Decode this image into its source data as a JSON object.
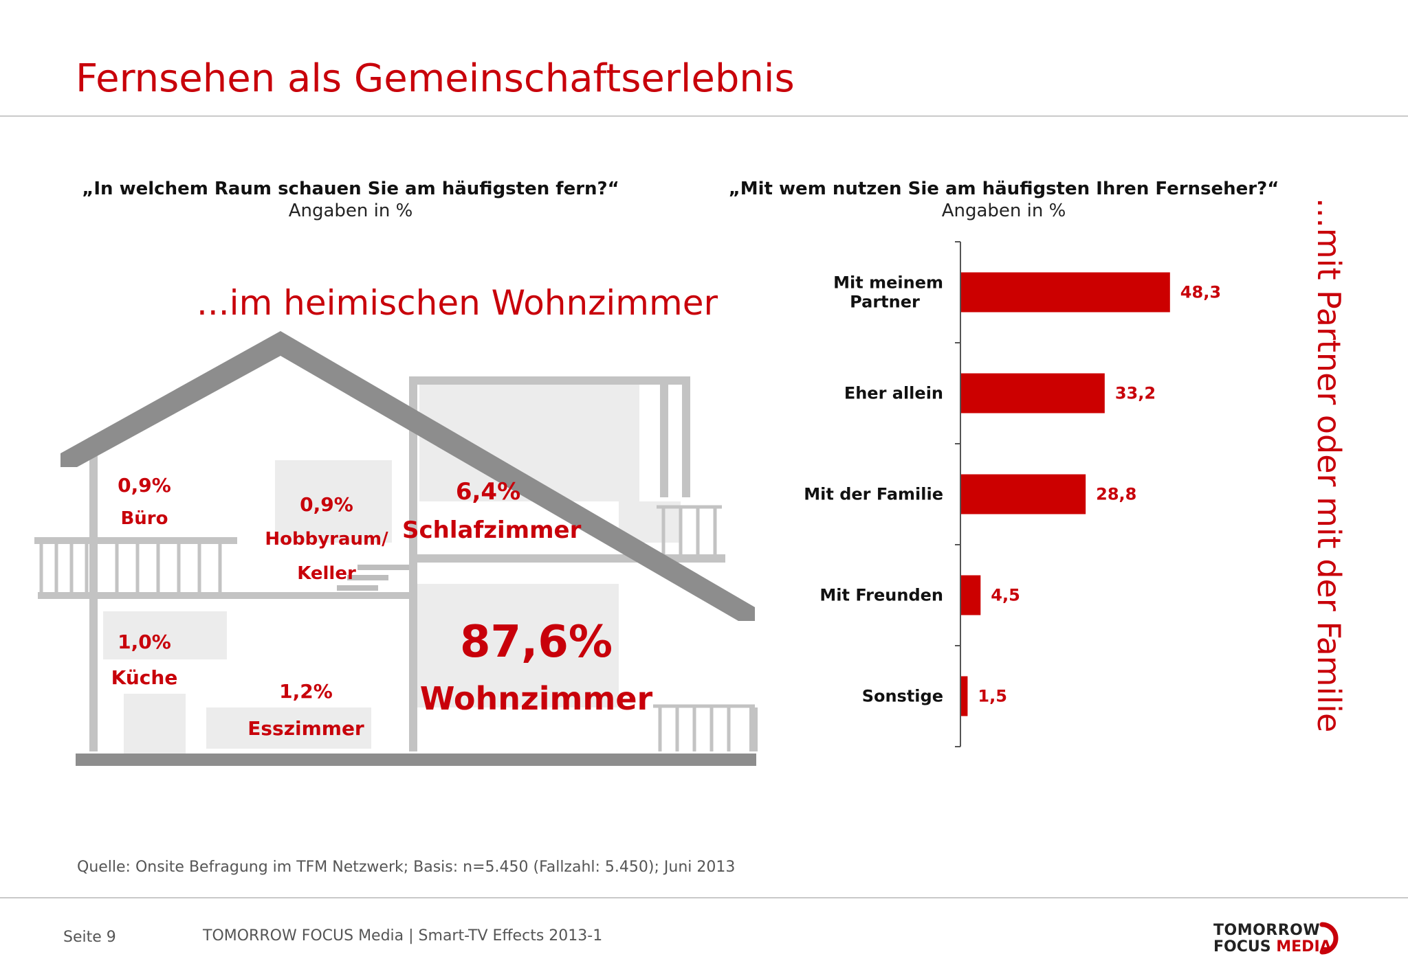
{
  "page": {
    "title": "Fernsehen als Gemeinschaftserlebnis",
    "tagline": "...im heimischen Wohnzimmer",
    "vertical_callout": "...mit Partner oder mit der Familie"
  },
  "left_panel": {
    "question": "„In welchem Raum schauen Sie am häufigsten fern?“",
    "unit_note": "Angaben in %",
    "rooms": [
      {
        "name": "Büro",
        "value": "0,9%"
      },
      {
        "name_line1": "Hobbyraum/",
        "name_line2": "Keller",
        "value": "0,9%"
      },
      {
        "name": "Schlafzimmer",
        "value": "6,4%"
      },
      {
        "name": "Küche",
        "value": "1,0%"
      },
      {
        "name": "Esszimmer",
        "value": "1,2%"
      },
      {
        "name": "Wohnzimmer",
        "value": "87,6%"
      }
    ]
  },
  "chart_data": {
    "type": "bar",
    "orientation": "horizontal",
    "title": "„Mit wem nutzen Sie am häufigsten Ihren Fernseher?“",
    "subtitle": "Angaben in %",
    "categories": [
      "Mit meinem Partner",
      "Eher allein",
      "Mit der Familie",
      "Mit Freunden",
      "Sonstige"
    ],
    "value_labels": [
      "48,3",
      "33,2",
      "28,8",
      "4,5",
      "1,5"
    ],
    "values": [
      48.3,
      33.2,
      28.8,
      4.5,
      1.5
    ],
    "xlim": [
      0,
      100
    ],
    "bar_color": "#cc0000",
    "grid": false
  },
  "footer": {
    "source": "Quelle: Onsite Befragung im TFM Netzwerk; Basis: n=5.450 (Fallzahl: 5.450); Juni 2013",
    "page_label": "Seite 9",
    "report": "TOMORROW FOCUS Media  |  Smart-TV Effects 2013-1",
    "logo_line1": "TOMORROW",
    "logo_line2a": "FOCUS",
    "logo_line2b": "MEDIA"
  }
}
